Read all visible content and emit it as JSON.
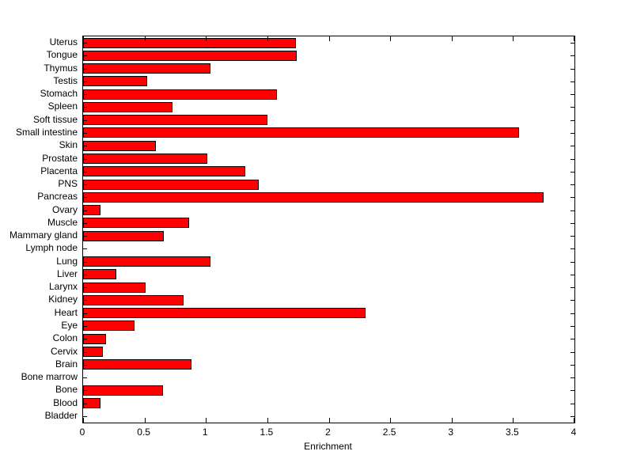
{
  "figure": {
    "background": "#ffffff",
    "bar_fill": "#ff0000",
    "bar_edge": "#000000",
    "axis_color": "#000000"
  },
  "chart_data": {
    "type": "bar",
    "orientation": "horizontal",
    "title": "",
    "xlabel": "Enrichment",
    "ylabel": "",
    "xlim": [
      0,
      4
    ],
    "xticks": [
      0,
      0.5,
      1,
      1.5,
      2,
      2.5,
      3,
      3.5,
      4
    ],
    "xtick_labels": [
      "0",
      "0.5",
      "1",
      "1.5",
      "2",
      "2.5",
      "3",
      "3.5",
      "4"
    ],
    "grid": false,
    "legend": null,
    "categories": [
      "Uterus",
      "Tongue",
      "Thymus",
      "Testis",
      "Stomach",
      "Spleen",
      "Soft tissue",
      "Small intestine",
      "Skin",
      "Prostate",
      "Placenta",
      "PNS",
      "Pancreas",
      "Ovary",
      "Muscle",
      "Mammary gland",
      "Lymph node",
      "Lung",
      "Liver",
      "Larynx",
      "Kidney",
      "Heart",
      "Eye",
      "Colon",
      "Cervix",
      "Brain",
      "Bone marrow",
      "Bone",
      "Blood",
      "Bladder"
    ],
    "values": [
      1.73,
      1.74,
      1.04,
      0.52,
      1.58,
      0.73,
      1.5,
      3.55,
      0.59,
      1.01,
      1.32,
      1.43,
      3.75,
      0.14,
      0.86,
      0.66,
      0,
      1.04,
      0.27,
      0.51,
      0.82,
      2.3,
      0.42,
      0.19,
      0.16,
      0.88,
      0,
      0.65,
      0.14,
      0
    ]
  }
}
